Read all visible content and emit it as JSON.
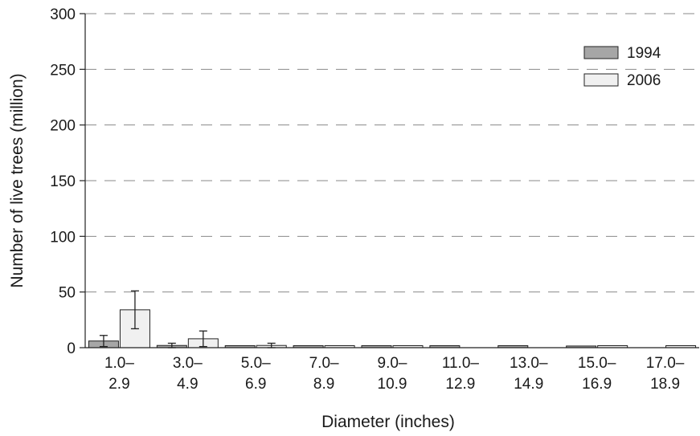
{
  "chart_data": {
    "type": "bar",
    "title": "",
    "xlabel": "Diameter (inches)",
    "ylabel": "Number of live trees (million)",
    "ylim": [
      0,
      300
    ],
    "yticks": [
      0,
      50,
      100,
      150,
      200,
      250,
      300
    ],
    "ytick_labels": [
      "0",
      "50",
      "100",
      "150",
      "200",
      "250",
      "300"
    ],
    "grid": "horizontal dashed",
    "legend_position": "top-right",
    "categories": [
      {
        "line1": "1.0–",
        "line2": "2.9"
      },
      {
        "line1": "3.0–",
        "line2": "4.9"
      },
      {
        "line1": "5.0–",
        "line2": "6.9"
      },
      {
        "line1": "7.0–",
        "line2": "8.9"
      },
      {
        "line1": "9.0–",
        "line2": "10.9"
      },
      {
        "line1": "11.0–",
        "line2": "12.9"
      },
      {
        "line1": "13.0–",
        "line2": "14.9"
      },
      {
        "line1": "15.0–",
        "line2": "16.9"
      },
      {
        "line1": "17.0–",
        "line2": "18.9"
      }
    ],
    "series": [
      {
        "name": "1994",
        "color": "#a6a6a6",
        "values": [
          6,
          2,
          1,
          1,
          1,
          1,
          0.5,
          1.5,
          0
        ],
        "error_low": [
          1,
          0,
          null,
          null,
          null,
          null,
          null,
          null,
          null
        ],
        "error_high": [
          11,
          4,
          null,
          null,
          null,
          null,
          null,
          null,
          null
        ]
      },
      {
        "name": "2006",
        "color": "#f0f0f0",
        "values": [
          34,
          8,
          2,
          1,
          1,
          0,
          0,
          0.5,
          0.5
        ],
        "error_low": [
          17,
          1,
          0,
          null,
          null,
          null,
          null,
          null,
          null
        ],
        "error_high": [
          51,
          15,
          4,
          null,
          null,
          null,
          null,
          null,
          null
        ]
      }
    ]
  }
}
